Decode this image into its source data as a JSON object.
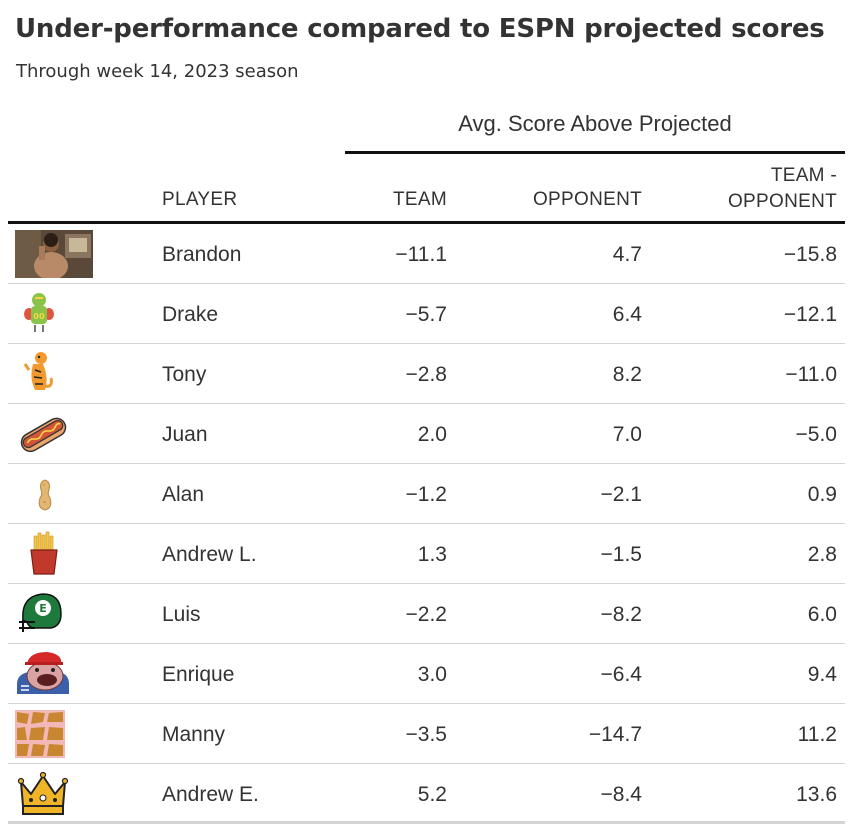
{
  "title": "Under-performance compared to ESPN projected scores",
  "subtitle": "Through week 14, 2023 season",
  "spanner": "Avg. Score Above Projected",
  "columns": {
    "player": "PLAYER",
    "team": "TEAM",
    "opponent": "OPPONENT",
    "diff_line1": "TEAM -",
    "diff_line2": "OPPONENT"
  },
  "rows": [
    {
      "player": "Brandon",
      "team": "−11.1",
      "opponent": "4.7",
      "diff": "−15.8",
      "avatar": "photo-avatar"
    },
    {
      "player": "Drake",
      "team": "−5.7",
      "opponent": "6.4",
      "diff": "−12.1",
      "avatar": "football-player-icon"
    },
    {
      "player": "Tony",
      "team": "−2.8",
      "opponent": "8.2",
      "diff": "−11.0",
      "avatar": "tiger-icon"
    },
    {
      "player": "Juan",
      "team": "2.0",
      "opponent": "7.0",
      "diff": "−5.0",
      "avatar": "hotdog-icon"
    },
    {
      "player": "Alan",
      "team": "−1.2",
      "opponent": "−2.1",
      "diff": "0.9",
      "avatar": "peanut-icon"
    },
    {
      "player": "Andrew L.",
      "team": "1.3",
      "opponent": "−1.5",
      "diff": "2.8",
      "avatar": "fries-icon"
    },
    {
      "player": "Luis",
      "team": "−2.2",
      "opponent": "−8.2",
      "diff": "6.0",
      "avatar": "helmet-icon"
    },
    {
      "player": "Enrique",
      "team": "3.0",
      "opponent": "−6.4",
      "diff": "9.4",
      "avatar": "toad-cap-icon"
    },
    {
      "player": "Manny",
      "team": "−3.5",
      "opponent": "−14.7",
      "diff": "11.2",
      "avatar": "giraffe-pattern-icon"
    },
    {
      "player": "Andrew E.",
      "team": "5.2",
      "opponent": "−8.4",
      "diff": "13.6",
      "avatar": "crown-icon"
    }
  ]
}
